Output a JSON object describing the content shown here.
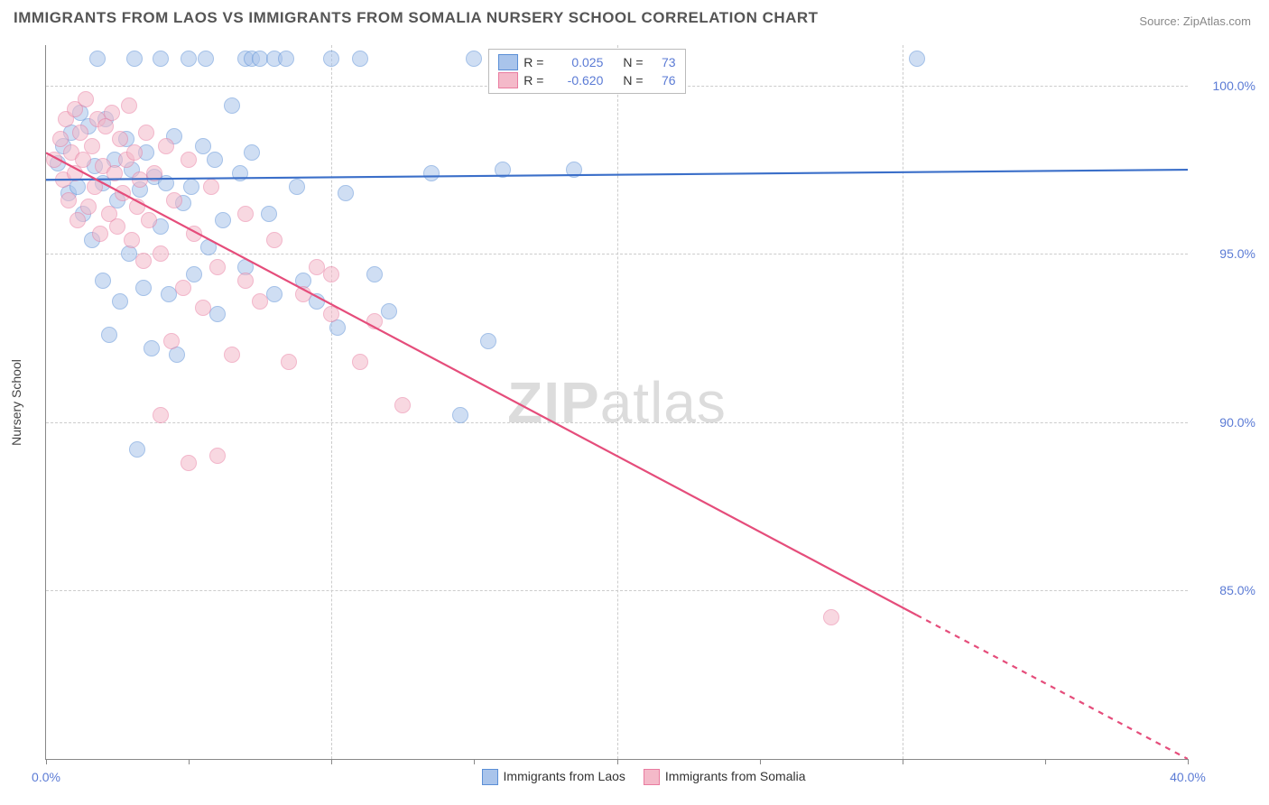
{
  "title": "IMMIGRANTS FROM LAOS VS IMMIGRANTS FROM SOMALIA NURSERY SCHOOL CORRELATION CHART",
  "source_label": "Source:",
  "source_value": "ZipAtlas.com",
  "y_axis_label": "Nursery School",
  "watermark_a": "ZIP",
  "watermark_b": "atlas",
  "chart": {
    "type": "scatter",
    "background_color": "#ffffff",
    "grid_color": "#cccccc",
    "axis_color": "#888888",
    "text_color": "#555555",
    "value_color": "#5b7bd5",
    "xlim": [
      0,
      40
    ],
    "ylim": [
      80,
      101.2
    ],
    "xticks": [
      0,
      10,
      20,
      30,
      40
    ],
    "xtick_labels": [
      "0.0%",
      "",
      "",
      "",
      "40.0%"
    ],
    "xtick_minor": [
      5,
      15,
      25,
      35
    ],
    "yticks": [
      85,
      90,
      95,
      100
    ],
    "ytick_labels": [
      "85.0%",
      "90.0%",
      "95.0%",
      "100.0%"
    ],
    "marker_radius": 9,
    "marker_opacity": 0.55,
    "line_width": 2.2
  },
  "series": [
    {
      "name": "Immigrants from Laos",
      "color_fill": "#a9c4eb",
      "color_stroke": "#5b8fd6",
      "line_color": "#3b6fc9",
      "R": "0.025",
      "N": "73",
      "regression": {
        "x1": 0,
        "y1": 97.2,
        "x2": 40,
        "y2": 97.5,
        "dash_from_x": 40
      },
      "points": [
        [
          0.4,
          97.7
        ],
        [
          0.6,
          98.2
        ],
        [
          0.8,
          96.8
        ],
        [
          0.9,
          98.6
        ],
        [
          1.1,
          97.0
        ],
        [
          1.2,
          99.2
        ],
        [
          1.3,
          96.2
        ],
        [
          1.5,
          98.8
        ],
        [
          1.6,
          95.4
        ],
        [
          1.7,
          97.6
        ],
        [
          1.8,
          100.8
        ],
        [
          2.0,
          94.2
        ],
        [
          2.0,
          97.1
        ],
        [
          2.1,
          99.0
        ],
        [
          2.2,
          92.6
        ],
        [
          2.4,
          97.8
        ],
        [
          2.5,
          96.6
        ],
        [
          2.6,
          93.6
        ],
        [
          2.8,
          98.4
        ],
        [
          2.9,
          95.0
        ],
        [
          3.0,
          97.5
        ],
        [
          3.1,
          100.8
        ],
        [
          3.2,
          89.2
        ],
        [
          3.3,
          96.9
        ],
        [
          3.4,
          94.0
        ],
        [
          3.5,
          98.0
        ],
        [
          3.7,
          92.2
        ],
        [
          3.8,
          97.3
        ],
        [
          4.0,
          95.8
        ],
        [
          4.0,
          100.8
        ],
        [
          4.2,
          97.1
        ],
        [
          4.3,
          93.8
        ],
        [
          4.5,
          98.5
        ],
        [
          4.6,
          92.0
        ],
        [
          4.8,
          96.5
        ],
        [
          5.0,
          100.8
        ],
        [
          5.1,
          97.0
        ],
        [
          5.2,
          94.4
        ],
        [
          5.5,
          98.2
        ],
        [
          5.6,
          100.8
        ],
        [
          5.7,
          95.2
        ],
        [
          5.9,
          97.8
        ],
        [
          6.0,
          93.2
        ],
        [
          6.2,
          96.0
        ],
        [
          6.5,
          99.4
        ],
        [
          6.8,
          97.4
        ],
        [
          7.0,
          94.6
        ],
        [
          7.0,
          100.8
        ],
        [
          7.2,
          98.0
        ],
        [
          7.2,
          100.8
        ],
        [
          7.5,
          100.8
        ],
        [
          7.8,
          96.2
        ],
        [
          8.0,
          93.8
        ],
        [
          8.0,
          100.8
        ],
        [
          8.4,
          100.8
        ],
        [
          8.8,
          97.0
        ],
        [
          9.0,
          94.2
        ],
        [
          9.5,
          93.6
        ],
        [
          10.0,
          100.8
        ],
        [
          10.2,
          92.8
        ],
        [
          10.5,
          96.8
        ],
        [
          11.0,
          100.8
        ],
        [
          11.5,
          94.4
        ],
        [
          12.0,
          93.3
        ],
        [
          13.5,
          97.4
        ],
        [
          14.5,
          90.2
        ],
        [
          15.0,
          100.8
        ],
        [
          15.5,
          92.4
        ],
        [
          16.0,
          97.5
        ],
        [
          18.5,
          97.5
        ],
        [
          30.5,
          100.8
        ]
      ]
    },
    {
      "name": "Immigrants from Somalia",
      "color_fill": "#f4b9c9",
      "color_stroke": "#e97ca0",
      "line_color": "#e54d7b",
      "R": "-0.620",
      "N": "76",
      "regression": {
        "x1": 0,
        "y1": 98.0,
        "x2": 40,
        "y2": 80.0,
        "dash_from_x": 30.5
      },
      "points": [
        [
          0.3,
          97.8
        ],
        [
          0.5,
          98.4
        ],
        [
          0.6,
          97.2
        ],
        [
          0.7,
          99.0
        ],
        [
          0.8,
          96.6
        ],
        [
          0.9,
          98.0
        ],
        [
          1.0,
          97.4
        ],
        [
          1.0,
          99.3
        ],
        [
          1.1,
          96.0
        ],
        [
          1.2,
          98.6
        ],
        [
          1.3,
          97.8
        ],
        [
          1.4,
          99.6
        ],
        [
          1.5,
          96.4
        ],
        [
          1.6,
          98.2
        ],
        [
          1.7,
          97.0
        ],
        [
          1.8,
          99.0
        ],
        [
          1.9,
          95.6
        ],
        [
          2.0,
          97.6
        ],
        [
          2.1,
          98.8
        ],
        [
          2.2,
          96.2
        ],
        [
          2.3,
          99.2
        ],
        [
          2.4,
          97.4
        ],
        [
          2.5,
          95.8
        ],
        [
          2.6,
          98.4
        ],
        [
          2.7,
          96.8
        ],
        [
          2.8,
          97.8
        ],
        [
          2.9,
          99.4
        ],
        [
          3.0,
          95.4
        ],
        [
          3.1,
          98.0
        ],
        [
          3.2,
          96.4
        ],
        [
          3.3,
          97.2
        ],
        [
          3.4,
          94.8
        ],
        [
          3.5,
          98.6
        ],
        [
          3.6,
          96.0
        ],
        [
          3.8,
          97.4
        ],
        [
          4.0,
          95.0
        ],
        [
          4.0,
          90.2
        ],
        [
          4.2,
          98.2
        ],
        [
          4.4,
          92.4
        ],
        [
          4.5,
          96.6
        ],
        [
          4.8,
          94.0
        ],
        [
          5.0,
          97.8
        ],
        [
          5.0,
          88.8
        ],
        [
          5.2,
          95.6
        ],
        [
          5.5,
          93.4
        ],
        [
          5.8,
          97.0
        ],
        [
          6.0,
          94.6
        ],
        [
          6.0,
          89.0
        ],
        [
          6.5,
          92.0
        ],
        [
          7.0,
          96.2
        ],
        [
          7.0,
          94.2
        ],
        [
          7.5,
          93.6
        ],
        [
          8.0,
          95.4
        ],
        [
          8.5,
          91.8
        ],
        [
          9.0,
          93.8
        ],
        [
          9.5,
          94.6
        ],
        [
          10.0,
          93.2
        ],
        [
          10.0,
          94.4
        ],
        [
          11.0,
          91.8
        ],
        [
          11.5,
          93.0
        ],
        [
          12.5,
          90.5
        ],
        [
          27.5,
          84.2
        ]
      ]
    }
  ],
  "legend_labels": {
    "R": "R =",
    "N": "N ="
  }
}
